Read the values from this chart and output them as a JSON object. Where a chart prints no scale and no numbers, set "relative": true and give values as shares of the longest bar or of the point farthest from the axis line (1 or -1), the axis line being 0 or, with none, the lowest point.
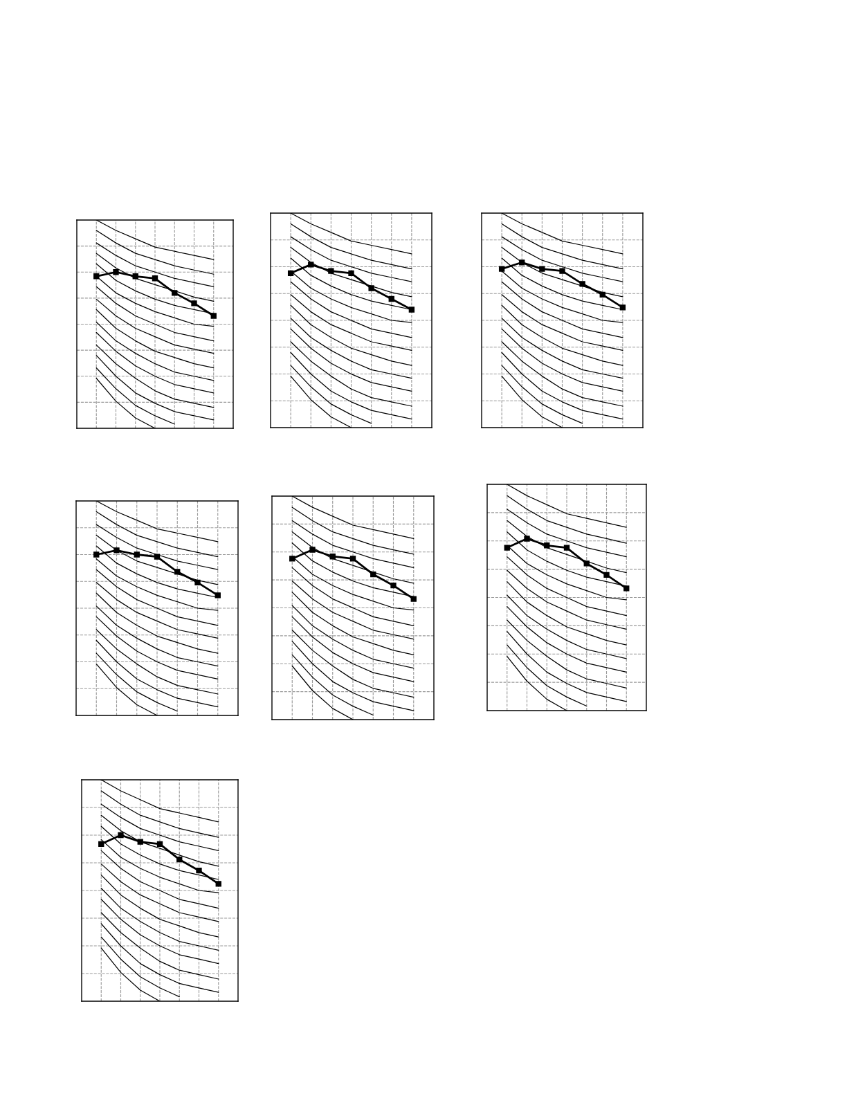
{
  "chart_data": [
    {
      "type": "line",
      "categories": [
        null,
        null,
        null,
        null,
        null,
        null,
        null
      ],
      "relative": true,
      "grid": true,
      "series": [
        {
          "color": "#000000",
          "marker": "none",
          "values": [
            1.0,
            0.95,
            0.91,
            0.87,
            0.85,
            0.83,
            0.81
          ]
        },
        {
          "color": "#000000",
          "marker": "none",
          "values": [
            0.95,
            0.89,
            0.84,
            0.81,
            0.78,
            0.76,
            0.74
          ]
        },
        {
          "color": "#000000",
          "marker": "none",
          "values": [
            0.89,
            0.83,
            0.78,
            0.75,
            0.72,
            0.7,
            0.68
          ]
        },
        {
          "color": "#000000",
          "marker": "none",
          "values": [
            0.84,
            0.77,
            0.72,
            0.69,
            0.66,
            0.63,
            0.61
          ]
        },
        {
          "color": "#000000",
          "marker": "none",
          "values": [
            0.79,
            0.71,
            0.66,
            0.62,
            0.59,
            0.57,
            0.55
          ]
        },
        {
          "color": "#000000",
          "marker": "none",
          "values": [
            0.73,
            0.65,
            0.6,
            0.56,
            0.53,
            0.5,
            0.49
          ]
        },
        {
          "color": "#000000",
          "marker": "none",
          "values": [
            0.68,
            0.6,
            0.54,
            0.5,
            0.46,
            0.44,
            0.42
          ]
        },
        {
          "color": "#000000",
          "marker": "none",
          "values": [
            0.62,
            0.54,
            0.48,
            0.44,
            0.4,
            0.38,
            0.36
          ]
        },
        {
          "color": "#000000",
          "marker": "none",
          "values": [
            0.57,
            0.48,
            0.42,
            0.37,
            0.34,
            0.31,
            0.29
          ]
        },
        {
          "color": "#000000",
          "marker": "none",
          "values": [
            0.51,
            0.42,
            0.36,
            0.31,
            0.27,
            0.25,
            0.23
          ]
        },
        {
          "color": "#000000",
          "marker": "none",
          "values": [
            0.46,
            0.37,
            0.3,
            0.25,
            0.21,
            0.19,
            0.17
          ]
        },
        {
          "color": "#000000",
          "marker": "none",
          "values": [
            0.4,
            0.31,
            0.24,
            0.18,
            0.14,
            0.12,
            0.1
          ]
        },
        {
          "color": "#000000",
          "marker": "none",
          "values": [
            0.35,
            0.25,
            0.17,
            0.12,
            0.08,
            0.06,
            0.04
          ]
        },
        {
          "color": "#000000",
          "marker": "none",
          "values": [
            0.29,
            0.19,
            0.11,
            0.06,
            0.02,
            null,
            null
          ]
        },
        {
          "color": "#000000",
          "marker": "none",
          "values": [
            0.24,
            0.13,
            0.05,
            0.0,
            null,
            null,
            null
          ]
        },
        {
          "color": "#000000",
          "marker": "square",
          "values": [
            0.73,
            0.75,
            0.73,
            0.72,
            0.65,
            0.6,
            0.54
          ]
        }
      ]
    },
    {
      "type": "line",
      "categories": [
        null,
        null,
        null,
        null,
        null,
        null,
        null
      ],
      "relative": true,
      "grid": true,
      "series": [
        {
          "color": "#000000",
          "marker": "none",
          "values": [
            1.0,
            0.95,
            0.91,
            0.87,
            0.85,
            0.83,
            0.81
          ]
        },
        {
          "color": "#000000",
          "marker": "none",
          "values": [
            0.95,
            0.89,
            0.84,
            0.81,
            0.78,
            0.76,
            0.74
          ]
        },
        {
          "color": "#000000",
          "marker": "none",
          "values": [
            0.89,
            0.83,
            0.78,
            0.75,
            0.72,
            0.7,
            0.68
          ]
        },
        {
          "color": "#000000",
          "marker": "none",
          "values": [
            0.84,
            0.77,
            0.72,
            0.69,
            0.66,
            0.63,
            0.61
          ]
        },
        {
          "color": "#000000",
          "marker": "none",
          "values": [
            0.79,
            0.71,
            0.66,
            0.62,
            0.59,
            0.57,
            0.55
          ]
        },
        {
          "color": "#000000",
          "marker": "none",
          "values": [
            0.73,
            0.65,
            0.6,
            0.56,
            0.53,
            0.5,
            0.49
          ]
        },
        {
          "color": "#000000",
          "marker": "none",
          "values": [
            0.68,
            0.6,
            0.54,
            0.5,
            0.46,
            0.44,
            0.42
          ]
        },
        {
          "color": "#000000",
          "marker": "none",
          "values": [
            0.62,
            0.54,
            0.48,
            0.44,
            0.4,
            0.38,
            0.36
          ]
        },
        {
          "color": "#000000",
          "marker": "none",
          "values": [
            0.57,
            0.48,
            0.42,
            0.37,
            0.34,
            0.31,
            0.29
          ]
        },
        {
          "color": "#000000",
          "marker": "none",
          "values": [
            0.51,
            0.42,
            0.36,
            0.31,
            0.27,
            0.25,
            0.23
          ]
        },
        {
          "color": "#000000",
          "marker": "none",
          "values": [
            0.46,
            0.37,
            0.3,
            0.25,
            0.21,
            0.19,
            0.17
          ]
        },
        {
          "color": "#000000",
          "marker": "none",
          "values": [
            0.4,
            0.31,
            0.24,
            0.18,
            0.14,
            0.12,
            0.1
          ]
        },
        {
          "color": "#000000",
          "marker": "none",
          "values": [
            0.35,
            0.25,
            0.17,
            0.12,
            0.08,
            0.06,
            0.04
          ]
        },
        {
          "color": "#000000",
          "marker": "none",
          "values": [
            0.29,
            0.19,
            0.11,
            0.06,
            0.02,
            null,
            null
          ]
        },
        {
          "color": "#000000",
          "marker": "none",
          "values": [
            0.24,
            0.13,
            0.05,
            0.0,
            null,
            null,
            null
          ]
        },
        {
          "color": "#000000",
          "marker": "square",
          "values": [
            0.72,
            0.76,
            0.73,
            0.72,
            0.65,
            0.6,
            0.55
          ]
        }
      ]
    },
    {
      "type": "line",
      "categories": [
        null,
        null,
        null,
        null,
        null,
        null,
        null
      ],
      "relative": true,
      "grid": true,
      "series": [
        {
          "color": "#000000",
          "marker": "none",
          "values": [
            1.0,
            0.95,
            0.91,
            0.87,
            0.85,
            0.83,
            0.81
          ]
        },
        {
          "color": "#000000",
          "marker": "none",
          "values": [
            0.95,
            0.89,
            0.84,
            0.81,
            0.78,
            0.76,
            0.74
          ]
        },
        {
          "color": "#000000",
          "marker": "none",
          "values": [
            0.89,
            0.83,
            0.78,
            0.75,
            0.72,
            0.7,
            0.68
          ]
        },
        {
          "color": "#000000",
          "marker": "none",
          "values": [
            0.84,
            0.77,
            0.72,
            0.69,
            0.66,
            0.63,
            0.61
          ]
        },
        {
          "color": "#000000",
          "marker": "none",
          "values": [
            0.79,
            0.71,
            0.66,
            0.62,
            0.59,
            0.57,
            0.55
          ]
        },
        {
          "color": "#000000",
          "marker": "none",
          "values": [
            0.73,
            0.65,
            0.6,
            0.56,
            0.53,
            0.5,
            0.49
          ]
        },
        {
          "color": "#000000",
          "marker": "none",
          "values": [
            0.68,
            0.6,
            0.54,
            0.5,
            0.46,
            0.44,
            0.42
          ]
        },
        {
          "color": "#000000",
          "marker": "none",
          "values": [
            0.62,
            0.54,
            0.48,
            0.44,
            0.4,
            0.38,
            0.36
          ]
        },
        {
          "color": "#000000",
          "marker": "none",
          "values": [
            0.57,
            0.48,
            0.42,
            0.37,
            0.34,
            0.31,
            0.29
          ]
        },
        {
          "color": "#000000",
          "marker": "none",
          "values": [
            0.51,
            0.42,
            0.36,
            0.31,
            0.27,
            0.25,
            0.23
          ]
        },
        {
          "color": "#000000",
          "marker": "none",
          "values": [
            0.46,
            0.37,
            0.3,
            0.25,
            0.21,
            0.19,
            0.17
          ]
        },
        {
          "color": "#000000",
          "marker": "none",
          "values": [
            0.4,
            0.31,
            0.24,
            0.18,
            0.14,
            0.12,
            0.1
          ]
        },
        {
          "color": "#000000",
          "marker": "none",
          "values": [
            0.35,
            0.25,
            0.17,
            0.12,
            0.08,
            0.06,
            0.04
          ]
        },
        {
          "color": "#000000",
          "marker": "none",
          "values": [
            0.29,
            0.19,
            0.11,
            0.06,
            0.02,
            null,
            null
          ]
        },
        {
          "color": "#000000",
          "marker": "none",
          "values": [
            0.24,
            0.13,
            0.05,
            0.0,
            null,
            null,
            null
          ]
        },
        {
          "color": "#000000",
          "marker": "square",
          "values": [
            0.74,
            0.77,
            0.74,
            0.73,
            0.67,
            0.62,
            0.56
          ]
        }
      ]
    },
    {
      "type": "line",
      "categories": [
        null,
        null,
        null,
        null,
        null,
        null,
        null
      ],
      "relative": true,
      "grid": true,
      "series": [
        {
          "color": "#000000",
          "marker": "none",
          "values": [
            1.0,
            0.95,
            0.91,
            0.87,
            0.85,
            0.83,
            0.81
          ]
        },
        {
          "color": "#000000",
          "marker": "none",
          "values": [
            0.95,
            0.89,
            0.84,
            0.81,
            0.78,
            0.76,
            0.74
          ]
        },
        {
          "color": "#000000",
          "marker": "none",
          "values": [
            0.89,
            0.83,
            0.78,
            0.75,
            0.72,
            0.7,
            0.68
          ]
        },
        {
          "color": "#000000",
          "marker": "none",
          "values": [
            0.84,
            0.77,
            0.72,
            0.69,
            0.66,
            0.63,
            0.61
          ]
        },
        {
          "color": "#000000",
          "marker": "none",
          "values": [
            0.79,
            0.71,
            0.66,
            0.62,
            0.59,
            0.57,
            0.55
          ]
        },
        {
          "color": "#000000",
          "marker": "none",
          "values": [
            0.73,
            0.65,
            0.6,
            0.56,
            0.53,
            0.5,
            0.49
          ]
        },
        {
          "color": "#000000",
          "marker": "none",
          "values": [
            0.68,
            0.6,
            0.54,
            0.5,
            0.46,
            0.44,
            0.42
          ]
        },
        {
          "color": "#000000",
          "marker": "none",
          "values": [
            0.62,
            0.54,
            0.48,
            0.44,
            0.4,
            0.38,
            0.36
          ]
        },
        {
          "color": "#000000",
          "marker": "none",
          "values": [
            0.57,
            0.48,
            0.42,
            0.37,
            0.34,
            0.31,
            0.29
          ]
        },
        {
          "color": "#000000",
          "marker": "none",
          "values": [
            0.51,
            0.42,
            0.36,
            0.31,
            0.27,
            0.25,
            0.23
          ]
        },
        {
          "color": "#000000",
          "marker": "none",
          "values": [
            0.46,
            0.37,
            0.3,
            0.25,
            0.21,
            0.19,
            0.17
          ]
        },
        {
          "color": "#000000",
          "marker": "none",
          "values": [
            0.4,
            0.31,
            0.24,
            0.18,
            0.14,
            0.12,
            0.1
          ]
        },
        {
          "color": "#000000",
          "marker": "none",
          "values": [
            0.35,
            0.25,
            0.17,
            0.12,
            0.08,
            0.06,
            0.04
          ]
        },
        {
          "color": "#000000",
          "marker": "none",
          "values": [
            0.29,
            0.19,
            0.11,
            0.06,
            0.02,
            null,
            null
          ]
        },
        {
          "color": "#000000",
          "marker": "none",
          "values": [
            0.24,
            0.13,
            0.05,
            0.0,
            null,
            null,
            null
          ]
        },
        {
          "color": "#000000",
          "marker": "square",
          "values": [
            0.75,
            0.77,
            0.75,
            0.74,
            0.67,
            0.62,
            0.56
          ]
        }
      ]
    },
    {
      "type": "line",
      "categories": [
        null,
        null,
        null,
        null,
        null,
        null,
        null
      ],
      "relative": true,
      "grid": true,
      "series": [
        {
          "color": "#000000",
          "marker": "none",
          "values": [
            1.0,
            0.95,
            0.91,
            0.87,
            0.85,
            0.83,
            0.81
          ]
        },
        {
          "color": "#000000",
          "marker": "none",
          "values": [
            0.95,
            0.89,
            0.84,
            0.81,
            0.78,
            0.76,
            0.74
          ]
        },
        {
          "color": "#000000",
          "marker": "none",
          "values": [
            0.89,
            0.83,
            0.78,
            0.75,
            0.72,
            0.7,
            0.68
          ]
        },
        {
          "color": "#000000",
          "marker": "none",
          "values": [
            0.84,
            0.77,
            0.72,
            0.69,
            0.66,
            0.63,
            0.61
          ]
        },
        {
          "color": "#000000",
          "marker": "none",
          "values": [
            0.79,
            0.71,
            0.66,
            0.62,
            0.59,
            0.57,
            0.55
          ]
        },
        {
          "color": "#000000",
          "marker": "none",
          "values": [
            0.73,
            0.65,
            0.6,
            0.56,
            0.53,
            0.5,
            0.49
          ]
        },
        {
          "color": "#000000",
          "marker": "none",
          "values": [
            0.68,
            0.6,
            0.54,
            0.5,
            0.46,
            0.44,
            0.42
          ]
        },
        {
          "color": "#000000",
          "marker": "none",
          "values": [
            0.62,
            0.54,
            0.48,
            0.44,
            0.4,
            0.38,
            0.36
          ]
        },
        {
          "color": "#000000",
          "marker": "none",
          "values": [
            0.57,
            0.48,
            0.42,
            0.37,
            0.34,
            0.31,
            0.29
          ]
        },
        {
          "color": "#000000",
          "marker": "none",
          "values": [
            0.51,
            0.42,
            0.36,
            0.31,
            0.27,
            0.25,
            0.23
          ]
        },
        {
          "color": "#000000",
          "marker": "none",
          "values": [
            0.46,
            0.37,
            0.3,
            0.25,
            0.21,
            0.19,
            0.17
          ]
        },
        {
          "color": "#000000",
          "marker": "none",
          "values": [
            0.4,
            0.31,
            0.24,
            0.18,
            0.14,
            0.12,
            0.1
          ]
        },
        {
          "color": "#000000",
          "marker": "none",
          "values": [
            0.35,
            0.25,
            0.17,
            0.12,
            0.08,
            0.06,
            0.04
          ]
        },
        {
          "color": "#000000",
          "marker": "none",
          "values": [
            0.29,
            0.19,
            0.11,
            0.06,
            0.02,
            null,
            null
          ]
        },
        {
          "color": "#000000",
          "marker": "none",
          "values": [
            0.24,
            0.13,
            0.05,
            0.0,
            null,
            null,
            null
          ]
        },
        {
          "color": "#000000",
          "marker": "square",
          "values": [
            0.72,
            0.76,
            0.73,
            0.72,
            0.65,
            0.6,
            0.54
          ]
        }
      ]
    },
    {
      "type": "line",
      "categories": [
        null,
        null,
        null,
        null,
        null,
        null,
        null
      ],
      "relative": true,
      "grid": true,
      "series": [
        {
          "color": "#000000",
          "marker": "none",
          "values": [
            1.0,
            0.95,
            0.91,
            0.87,
            0.85,
            0.83,
            0.81
          ]
        },
        {
          "color": "#000000",
          "marker": "none",
          "values": [
            0.95,
            0.89,
            0.84,
            0.81,
            0.78,
            0.76,
            0.74
          ]
        },
        {
          "color": "#000000",
          "marker": "none",
          "values": [
            0.89,
            0.83,
            0.78,
            0.75,
            0.72,
            0.7,
            0.68
          ]
        },
        {
          "color": "#000000",
          "marker": "none",
          "values": [
            0.84,
            0.77,
            0.72,
            0.69,
            0.66,
            0.63,
            0.61
          ]
        },
        {
          "color": "#000000",
          "marker": "none",
          "values": [
            0.79,
            0.71,
            0.66,
            0.62,
            0.59,
            0.57,
            0.55
          ]
        },
        {
          "color": "#000000",
          "marker": "none",
          "values": [
            0.73,
            0.65,
            0.6,
            0.56,
            0.53,
            0.5,
            0.49
          ]
        },
        {
          "color": "#000000",
          "marker": "none",
          "values": [
            0.68,
            0.6,
            0.54,
            0.5,
            0.46,
            0.44,
            0.42
          ]
        },
        {
          "color": "#000000",
          "marker": "none",
          "values": [
            0.62,
            0.54,
            0.48,
            0.44,
            0.4,
            0.38,
            0.36
          ]
        },
        {
          "color": "#000000",
          "marker": "none",
          "values": [
            0.57,
            0.48,
            0.42,
            0.37,
            0.34,
            0.31,
            0.29
          ]
        },
        {
          "color": "#000000",
          "marker": "none",
          "values": [
            0.51,
            0.42,
            0.36,
            0.31,
            0.27,
            0.25,
            0.23
          ]
        },
        {
          "color": "#000000",
          "marker": "none",
          "values": [
            0.46,
            0.37,
            0.3,
            0.25,
            0.21,
            0.19,
            0.17
          ]
        },
        {
          "color": "#000000",
          "marker": "none",
          "values": [
            0.4,
            0.31,
            0.24,
            0.18,
            0.14,
            0.12,
            0.1
          ]
        },
        {
          "color": "#000000",
          "marker": "none",
          "values": [
            0.35,
            0.25,
            0.17,
            0.12,
            0.08,
            0.06,
            0.04
          ]
        },
        {
          "color": "#000000",
          "marker": "none",
          "values": [
            0.29,
            0.19,
            0.11,
            0.06,
            0.02,
            null,
            null
          ]
        },
        {
          "color": "#000000",
          "marker": "none",
          "values": [
            0.24,
            0.13,
            0.05,
            0.0,
            null,
            null,
            null
          ]
        },
        {
          "color": "#000000",
          "marker": "square",
          "values": [
            0.72,
            0.76,
            0.73,
            0.72,
            0.65,
            0.6,
            0.54
          ]
        }
      ]
    },
    {
      "type": "line",
      "categories": [
        null,
        null,
        null,
        null,
        null,
        null,
        null
      ],
      "relative": true,
      "grid": true,
      "series": [
        {
          "color": "#000000",
          "marker": "none",
          "values": [
            1.0,
            0.95,
            0.91,
            0.87,
            0.85,
            0.83,
            0.81
          ]
        },
        {
          "color": "#000000",
          "marker": "none",
          "values": [
            0.95,
            0.89,
            0.84,
            0.81,
            0.78,
            0.76,
            0.74
          ]
        },
        {
          "color": "#000000",
          "marker": "none",
          "values": [
            0.89,
            0.83,
            0.78,
            0.75,
            0.72,
            0.7,
            0.68
          ]
        },
        {
          "color": "#000000",
          "marker": "none",
          "values": [
            0.84,
            0.77,
            0.72,
            0.69,
            0.66,
            0.63,
            0.61
          ]
        },
        {
          "color": "#000000",
          "marker": "none",
          "values": [
            0.79,
            0.71,
            0.66,
            0.62,
            0.59,
            0.57,
            0.55
          ]
        },
        {
          "color": "#000000",
          "marker": "none",
          "values": [
            0.73,
            0.65,
            0.6,
            0.56,
            0.53,
            0.5,
            0.49
          ]
        },
        {
          "color": "#000000",
          "marker": "none",
          "values": [
            0.68,
            0.6,
            0.54,
            0.5,
            0.46,
            0.44,
            0.42
          ]
        },
        {
          "color": "#000000",
          "marker": "none",
          "values": [
            0.62,
            0.54,
            0.48,
            0.44,
            0.4,
            0.38,
            0.36
          ]
        },
        {
          "color": "#000000",
          "marker": "none",
          "values": [
            0.57,
            0.48,
            0.42,
            0.37,
            0.34,
            0.31,
            0.29
          ]
        },
        {
          "color": "#000000",
          "marker": "none",
          "values": [
            0.51,
            0.42,
            0.36,
            0.31,
            0.27,
            0.25,
            0.23
          ]
        },
        {
          "color": "#000000",
          "marker": "none",
          "values": [
            0.46,
            0.37,
            0.3,
            0.25,
            0.21,
            0.19,
            0.17
          ]
        },
        {
          "color": "#000000",
          "marker": "none",
          "values": [
            0.4,
            0.31,
            0.24,
            0.18,
            0.14,
            0.12,
            0.1
          ]
        },
        {
          "color": "#000000",
          "marker": "none",
          "values": [
            0.35,
            0.25,
            0.17,
            0.12,
            0.08,
            0.06,
            0.04
          ]
        },
        {
          "color": "#000000",
          "marker": "none",
          "values": [
            0.29,
            0.19,
            0.11,
            0.06,
            0.02,
            null,
            null
          ]
        },
        {
          "color": "#000000",
          "marker": "none",
          "values": [
            0.24,
            0.13,
            0.05,
            0.0,
            null,
            null,
            null
          ]
        },
        {
          "color": "#000000",
          "marker": "square",
          "values": [
            0.71,
            0.75,
            0.72,
            0.71,
            0.64,
            0.59,
            0.53
          ]
        }
      ]
    }
  ]
}
